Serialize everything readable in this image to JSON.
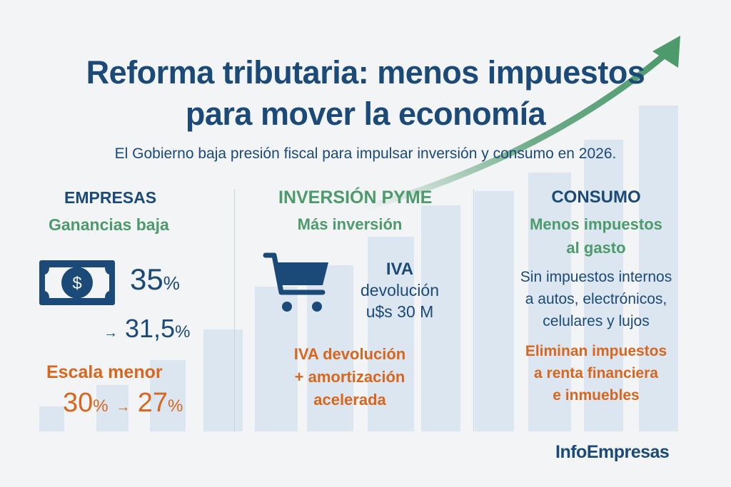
{
  "title": {
    "line1": "Reforma tributaria: menos impuestos",
    "line2": "para mover la economía"
  },
  "subtitle": "El Gobierno baja presión fiscal para impulsar inversión y consumo en 2026.",
  "empresas": {
    "heading": "EMPRESAS",
    "subheading": "Ganancias baja",
    "rate_from": "35",
    "rate_to": "31,5",
    "percent": "%",
    "arrow": "→",
    "scale_label": "Escala menor",
    "scale_from": "30",
    "scale_to": "27"
  },
  "pyme": {
    "heading": "INVERSIÓN PYME",
    "subheading": "Más inversión",
    "iva": "IVA",
    "devolucion": "devolución",
    "amount": "u$s 30 M",
    "extra1": "IVA devolución",
    "extra2": "+ amortización",
    "extra3": "acelerada"
  },
  "consumo": {
    "heading": "CONSUMO",
    "sub1": "Menos impuestos",
    "sub2": "al gasto",
    "body1": "Sin impuestos internos",
    "body2": "a autos, electrónicos,",
    "body3": "celulares y lujos",
    "extra1": "Eliminan impuestos",
    "extra2": "a renta financiera",
    "extra3": "e inmuebles"
  },
  "brand": "InfoEmpresas",
  "colors": {
    "navy": "#1b4a78",
    "green": "#4d9a6c",
    "orange": "#d8661e"
  }
}
